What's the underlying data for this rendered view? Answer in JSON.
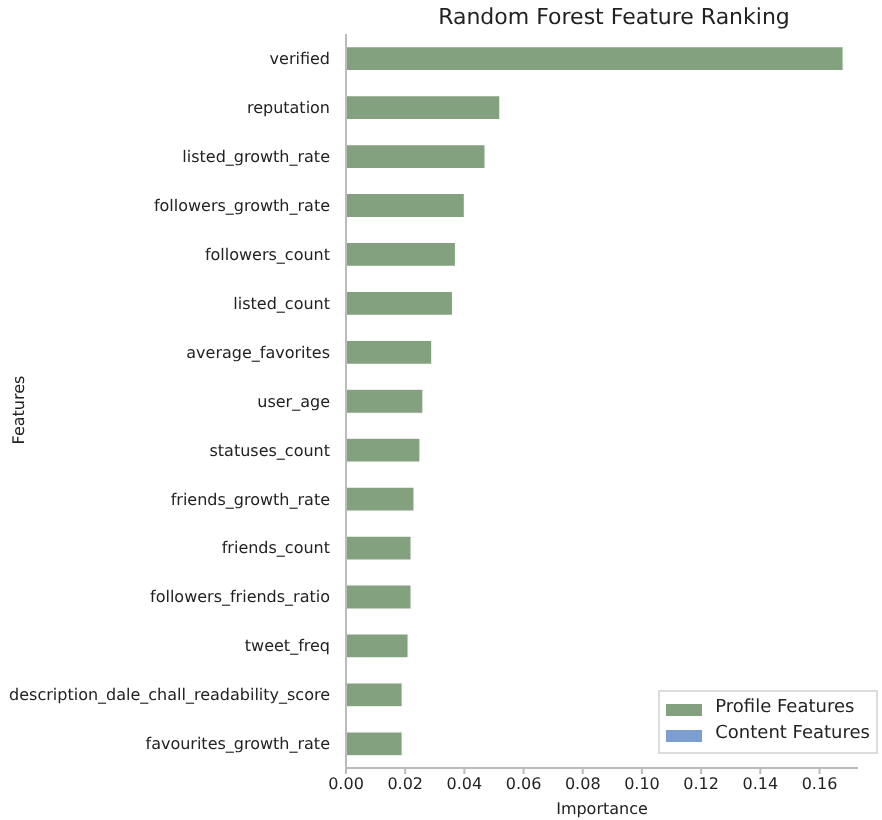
{
  "chart_data": {
    "type": "bar",
    "orientation": "horizontal",
    "stacked": true,
    "title": "Random Forest Feature Ranking",
    "xlabel": "Importance",
    "ylabel": "Features",
    "categories": [
      "verified",
      "reputation",
      "listed_growth_rate",
      "followers_growth_rate",
      "followers_count",
      "listed_count",
      "average_favorites",
      "user_age",
      "statuses_count",
      "friends_growth_rate",
      "friends_count",
      "followers_friends_ratio",
      "tweet_freq",
      "description_dale_chall_readability_score",
      "favourites_growth_rate"
    ],
    "series": [
      {
        "name": "Profile Features",
        "color": "#84a17f",
        "values": [
          0.168,
          0.052,
          0.047,
          0.04,
          0.037,
          0.036,
          0.029,
          0.026,
          0.025,
          0.023,
          0.022,
          0.022,
          0.021,
          0.019,
          0.019
        ]
      },
      {
        "name": "Content Features",
        "color": "#7c9fd0",
        "values": [
          null,
          null,
          null,
          null,
          null,
          null,
          null,
          null,
          null,
          null,
          null,
          null,
          null,
          null,
          null
        ]
      }
    ],
    "xlim": [
      0,
      0.173
    ],
    "xticks": [
      {
        "value": 0,
        "label": "0.00"
      },
      {
        "value": 0.02,
        "label": "0.02"
      },
      {
        "value": 0.04,
        "label": "0.04"
      },
      {
        "value": 0.06,
        "label": "0.06"
      },
      {
        "value": 0.08,
        "label": "0.08"
      },
      {
        "value": 0.1,
        "label": "0.10"
      },
      {
        "value": 0.12,
        "label": "0.12"
      },
      {
        "value": 0.14,
        "label": "0.14"
      },
      {
        "value": 0.16,
        "label": "0.16"
      }
    ],
    "grid": false,
    "legend": "bottom right"
  }
}
